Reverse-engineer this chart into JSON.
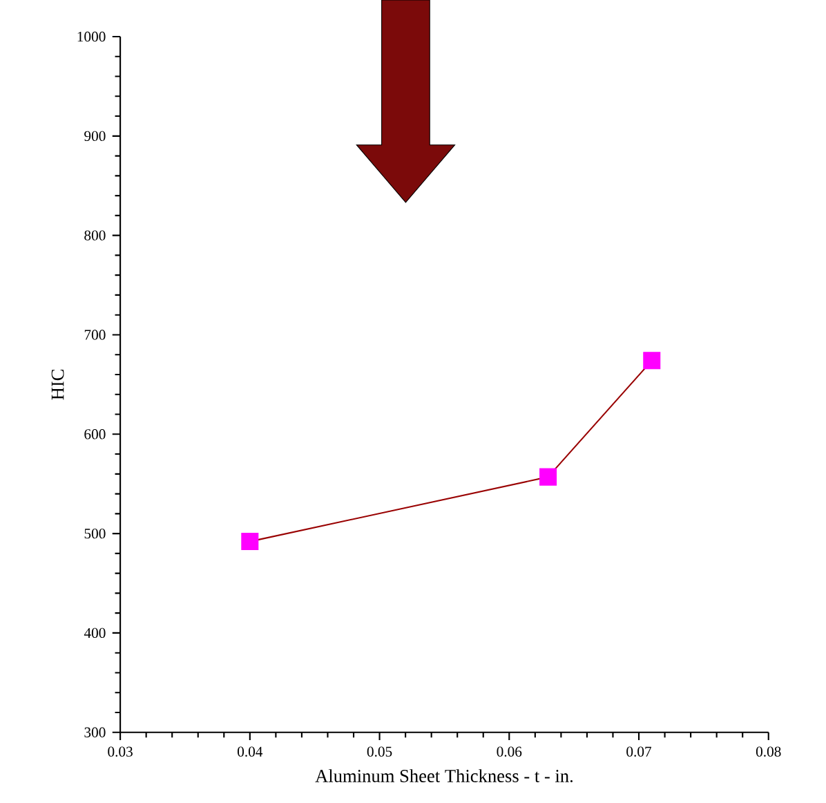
{
  "chart_data": {
    "type": "line",
    "xlabel": "Aluminum Sheet Thickness - t - in.",
    "ylabel": "HIC",
    "x": [
      0.04,
      0.063,
      0.071
    ],
    "series": [
      {
        "color": "#990000",
        "colors": [
          "#ff00ff",
          "#ff00ff",
          "#ff00ff"
        ],
        "values": [
          492,
          557,
          674
        ]
      }
    ],
    "xlim": [
      0.03,
      0.08
    ],
    "xticks": [
      0.03,
      0.04,
      0.05,
      0.06,
      0.07,
      0.08
    ],
    "ylim": [
      300,
      1000
    ],
    "yticks": [
      300,
      400,
      500,
      600,
      700,
      800,
      900,
      1000
    ],
    "marker": "square",
    "line_style": "solid",
    "grid": false
  }
}
